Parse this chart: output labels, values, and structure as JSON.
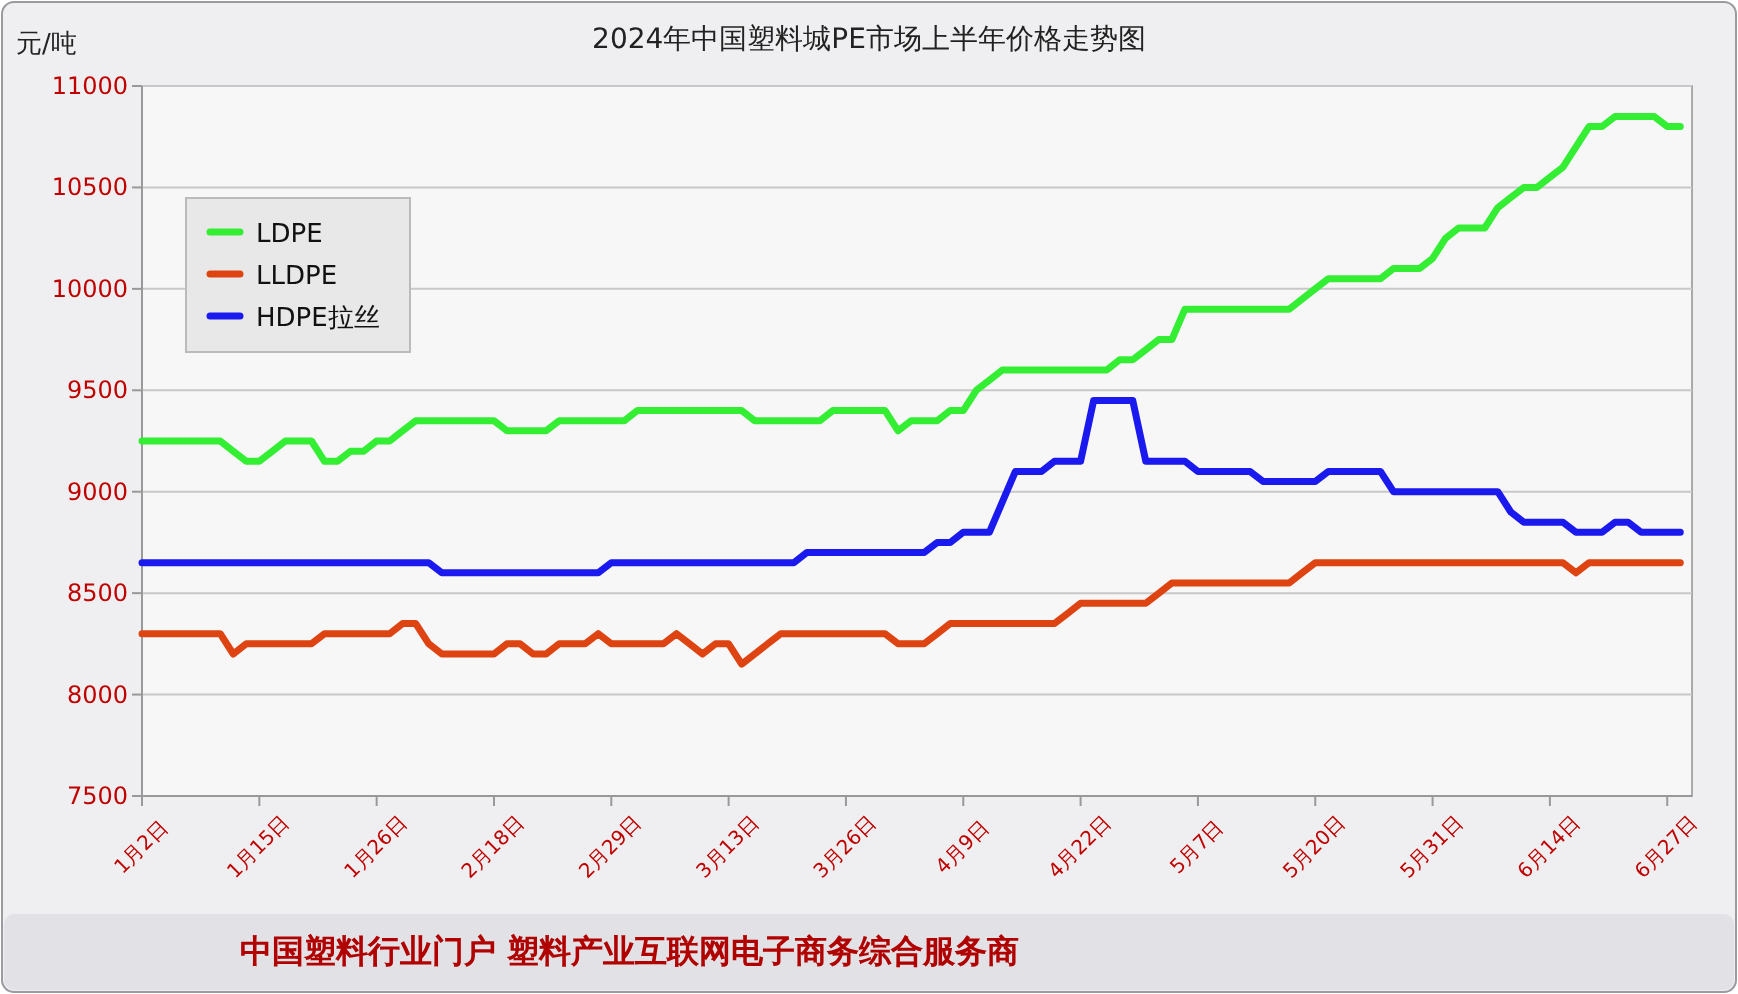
{
  "chart_data": {
    "type": "line",
    "title": "2024年中国塑料城PE市场上半年价格走势图",
    "ylabel": "元/吨",
    "categories": [
      "1月2日",
      null,
      null,
      null,
      null,
      null,
      null,
      null,
      null,
      "1月15日",
      null,
      null,
      null,
      null,
      null,
      null,
      null,
      null,
      "1月26日",
      null,
      null,
      null,
      null,
      null,
      null,
      null,
      null,
      "2月18日",
      null,
      null,
      null,
      null,
      null,
      null,
      null,
      null,
      "2月29日",
      null,
      null,
      null,
      null,
      null,
      null,
      null,
      null,
      "3月13日",
      null,
      null,
      null,
      null,
      null,
      null,
      null,
      null,
      "3月26日",
      null,
      null,
      null,
      null,
      null,
      null,
      null,
      null,
      "4月9日",
      null,
      null,
      null,
      null,
      null,
      null,
      null,
      null,
      "4月22日",
      null,
      null,
      null,
      null,
      null,
      null,
      null,
      null,
      "5月7日",
      null,
      null,
      null,
      null,
      null,
      null,
      null,
      null,
      "5月20日",
      null,
      null,
      null,
      null,
      null,
      null,
      null,
      null,
      "5月31日",
      null,
      null,
      null,
      null,
      null,
      null,
      null,
      null,
      "6月14日",
      null,
      null,
      null,
      null,
      null,
      null,
      null,
      null,
      "6月27日",
      null
    ],
    "ylim": [
      7500,
      11000
    ],
    "yticks": [
      7500,
      8000,
      8500,
      9000,
      9500,
      10000,
      10500,
      11000
    ],
    "grid": "y",
    "legend": "top left",
    "marker": "none",
    "line_style": "solid",
    "annotations": [
      "中国塑料行业门户 塑料产业互联网电子商务综合服务商"
    ],
    "series": [
      {
        "name": "LDPE",
        "color": "#33ee33",
        "values": [
          9250,
          9250,
          9250,
          9250,
          9250,
          9250,
          9250,
          9200,
          9150,
          9150,
          9200,
          9250,
          9250,
          9250,
          9150,
          9150,
          9200,
          9200,
          9250,
          9250,
          9300,
          9350,
          9350,
          9350,
          9350,
          9350,
          9350,
          9350,
          9300,
          9300,
          9300,
          9300,
          9350,
          9350,
          9350,
          9350,
          9350,
          9350,
          9400,
          9400,
          9400,
          9400,
          9400,
          9400,
          9400,
          9400,
          9400,
          9350,
          9350,
          9350,
          9350,
          9350,
          9350,
          9400,
          9400,
          9400,
          9400,
          9400,
          9300,
          9350,
          9350,
          9350,
          9400,
          9400,
          9500,
          9550,
          9600,
          9600,
          9600,
          9600,
          9600,
          9600,
          9600,
          9600,
          9600,
          9650,
          9650,
          9700,
          9750,
          9750,
          9900,
          9900,
          9900,
          9900,
          9900,
          9900,
          9900,
          9900,
          9900,
          9950,
          10000,
          10050,
          10050,
          10050,
          10050,
          10050,
          10100,
          10100,
          10100,
          10150,
          10250,
          10300,
          10300,
          10300,
          10400,
          10450,
          10500,
          10500,
          10550,
          10600,
          10700,
          10800,
          10800,
          10850,
          10850,
          10850,
          10850,
          10800,
          10800
        ]
      },
      {
        "name": "LLDPE",
        "color": "#dd4411",
        "values": [
          8300,
          8300,
          8300,
          8300,
          8300,
          8300,
          8300,
          8200,
          8250,
          8250,
          8250,
          8250,
          8250,
          8250,
          8300,
          8300,
          8300,
          8300,
          8300,
          8300,
          8350,
          8350,
          8250,
          8200,
          8200,
          8200,
          8200,
          8200,
          8250,
          8250,
          8200,
          8200,
          8250,
          8250,
          8250,
          8300,
          8250,
          8250,
          8250,
          8250,
          8250,
          8300,
          8250,
          8200,
          8250,
          8250,
          8150,
          8200,
          8250,
          8300,
          8300,
          8300,
          8300,
          8300,
          8300,
          8300,
          8300,
          8300,
          8250,
          8250,
          8250,
          8300,
          8350,
          8350,
          8350,
          8350,
          8350,
          8350,
          8350,
          8350,
          8350,
          8400,
          8450,
          8450,
          8450,
          8450,
          8450,
          8450,
          8500,
          8550,
          8550,
          8550,
          8550,
          8550,
          8550,
          8550,
          8550,
          8550,
          8550,
          8600,
          8650,
          8650,
          8650,
          8650,
          8650,
          8650,
          8650,
          8650,
          8650,
          8650,
          8650,
          8650,
          8650,
          8650,
          8650,
          8650,
          8650,
          8650,
          8650,
          8650,
          8600,
          8650,
          8650,
          8650,
          8650,
          8650,
          8650,
          8650,
          8650
        ]
      },
      {
        "name": "HDPE拉丝",
        "color": "#1a1aee",
        "values": [
          8650,
          8650,
          8650,
          8650,
          8650,
          8650,
          8650,
          8650,
          8650,
          8650,
          8650,
          8650,
          8650,
          8650,
          8650,
          8650,
          8650,
          8650,
          8650,
          8650,
          8650,
          8650,
          8650,
          8600,
          8600,
          8600,
          8600,
          8600,
          8600,
          8600,
          8600,
          8600,
          8600,
          8600,
          8600,
          8600,
          8650,
          8650,
          8650,
          8650,
          8650,
          8650,
          8650,
          8650,
          8650,
          8650,
          8650,
          8650,
          8650,
          8650,
          8650,
          8700,
          8700,
          8700,
          8700,
          8700,
          8700,
          8700,
          8700,
          8700,
          8700,
          8750,
          8750,
          8800,
          8800,
          8800,
          8950,
          9100,
          9100,
          9100,
          9150,
          9150,
          9150,
          9450,
          9450,
          9450,
          9450,
          9150,
          9150,
          9150,
          9150,
          9100,
          9100,
          9100,
          9100,
          9100,
          9050,
          9050,
          9050,
          9050,
          9050,
          9100,
          9100,
          9100,
          9100,
          9100,
          9000,
          9000,
          9000,
          9000,
          9000,
          9000,
          9000,
          9000,
          9000,
          8900,
          8850,
          8850,
          8850,
          8850,
          8800,
          8800,
          8800,
          8850,
          8850,
          8800,
          8800,
          8800,
          8800
        ]
      }
    ]
  }
}
